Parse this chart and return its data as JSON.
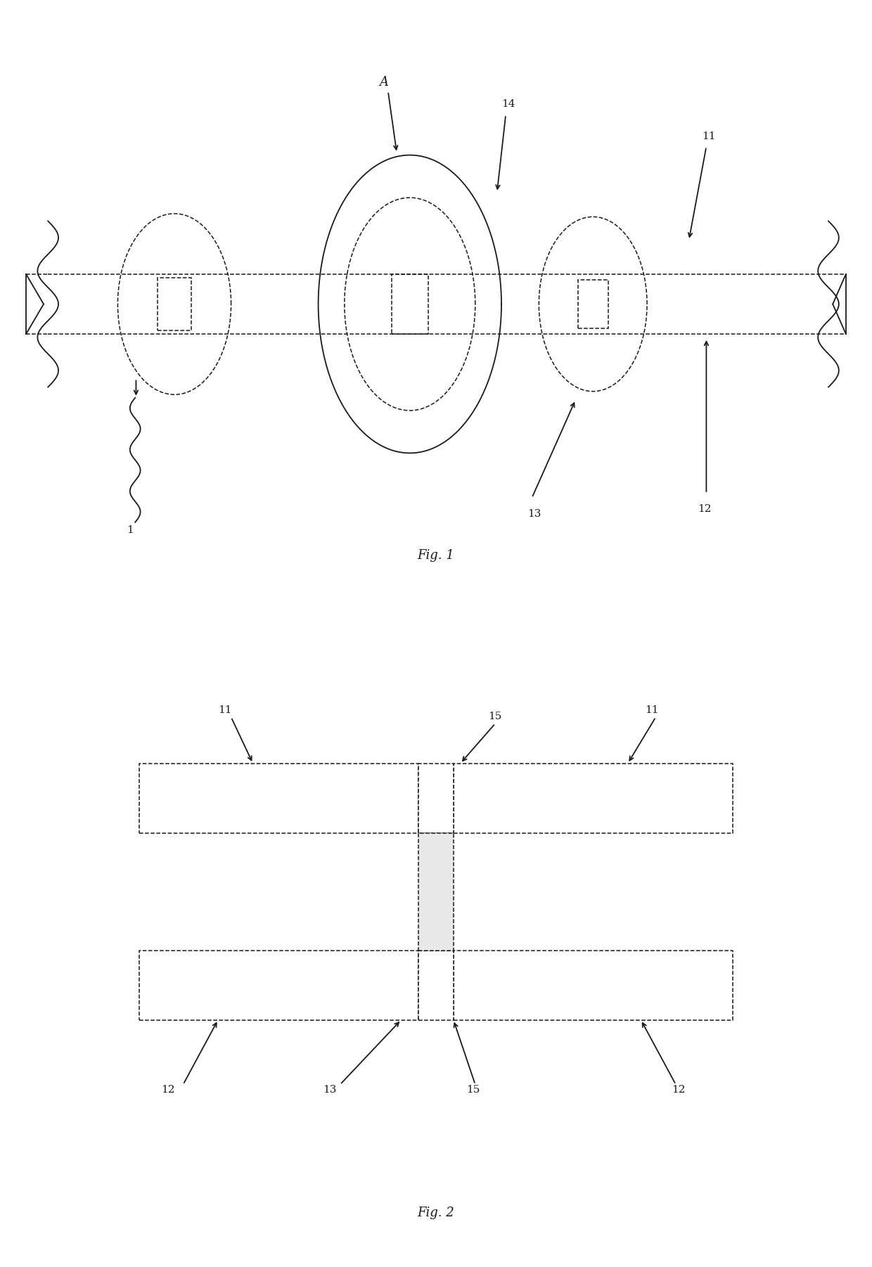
{
  "bg_color": "#ffffff",
  "line_color": "#1a1a1a",
  "fig1_caption": "Fig. 1",
  "fig2_caption": "Fig. 2"
}
